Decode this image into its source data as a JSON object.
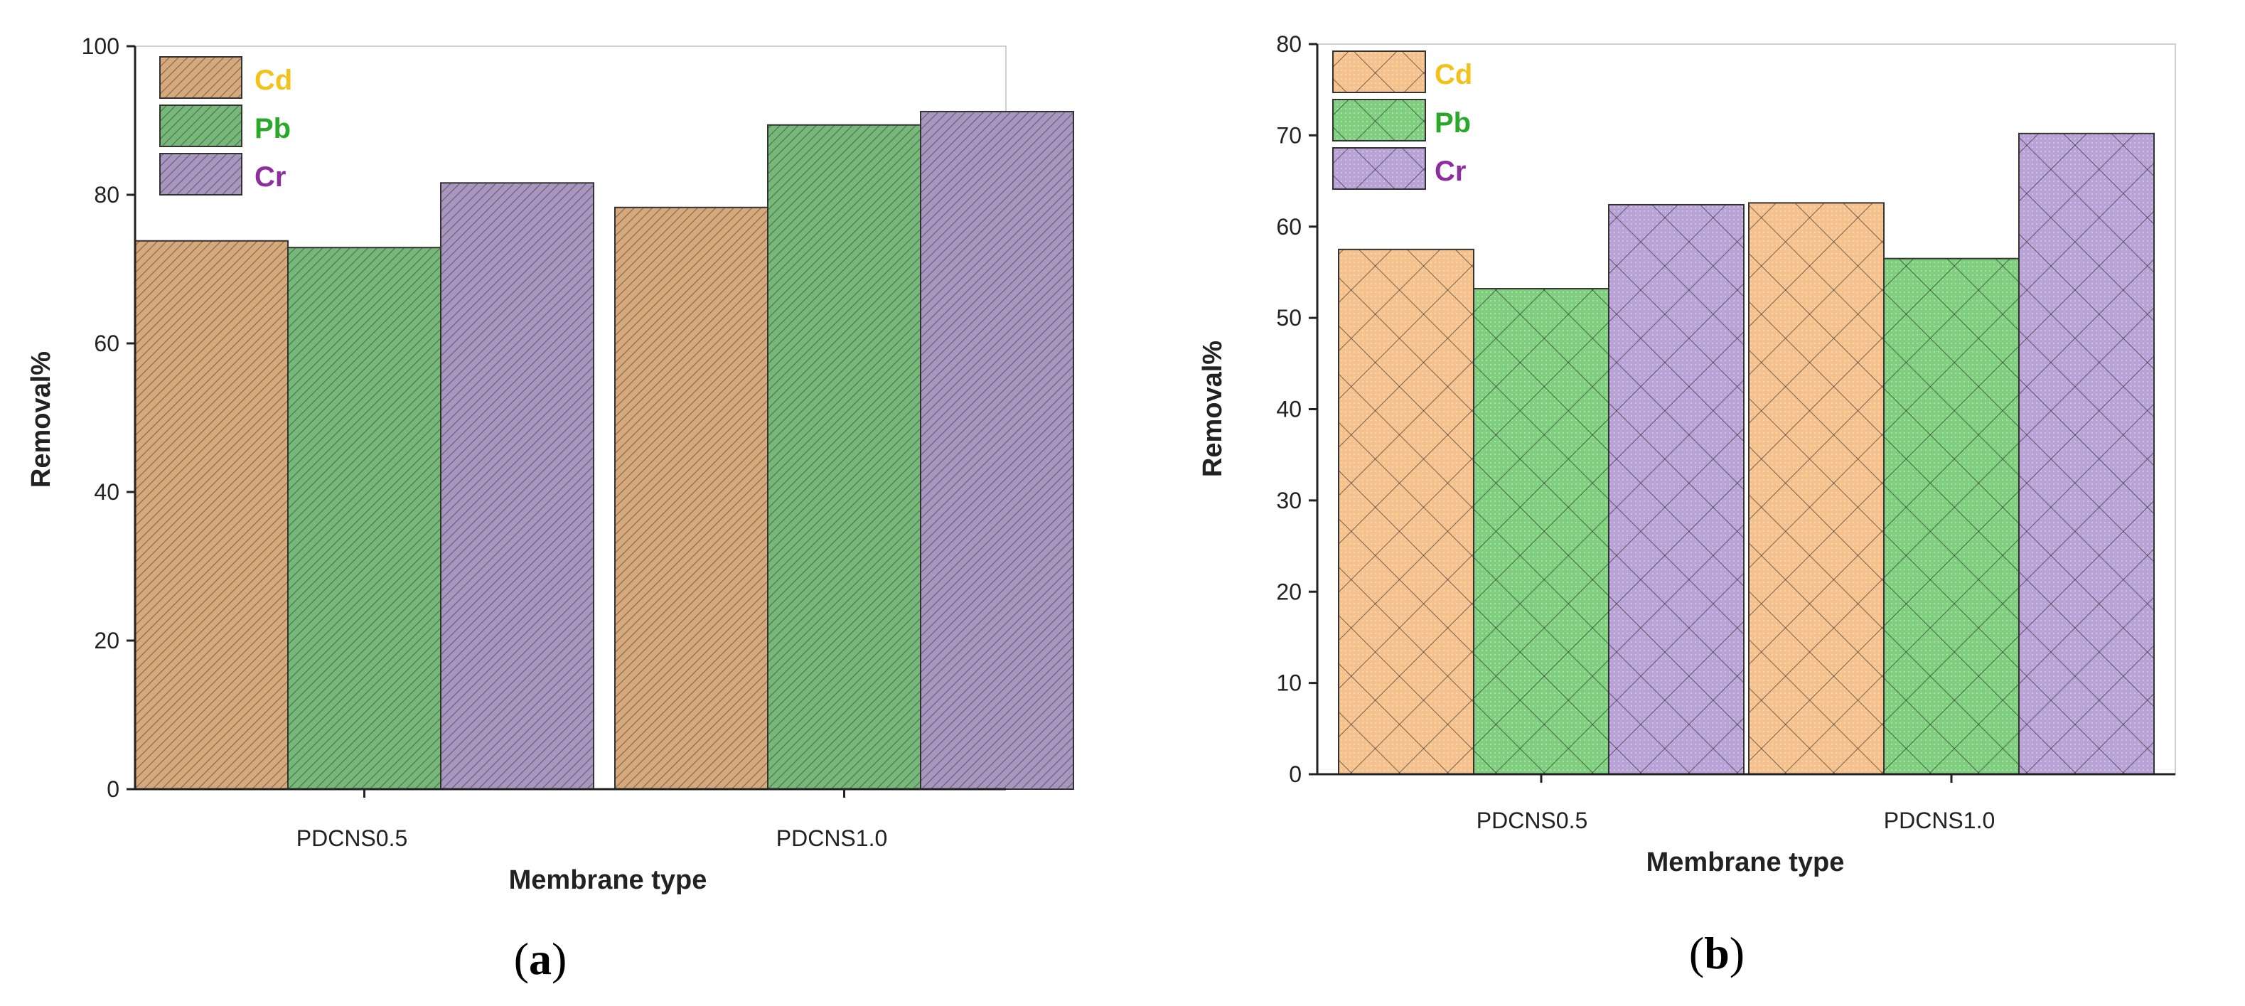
{
  "colors": {
    "Cd": "#f5c28d",
    "Pb": "#7fcf7f",
    "Cr": "#b9a3d6",
    "Cd_a": "#d6a97c",
    "Pb_a": "#75b87a",
    "Cr_a": "#a895c0",
    "Cd_text": "#f2c21b",
    "Pb_text": "#2aa82a",
    "Cr_text": "#8e2d9e"
  },
  "chart_data": [
    {
      "id": "a",
      "type": "bar",
      "panel_label": {
        "open": "(",
        "letter": "a",
        "close": ")"
      },
      "categories": [
        "PDCNS0.5",
        "PDCNS1.0"
      ],
      "series": [
        {
          "name": "Cd",
          "values": [
            73.8,
            78.3
          ]
        },
        {
          "name": "Pb",
          "values": [
            72.9,
            89.4
          ]
        },
        {
          "name": "Cr",
          "values": [
            81.6,
            91.2
          ]
        }
      ],
      "xlabel": "Membrane type",
      "ylabel": "Removal%",
      "ylim": [
        0,
        100
      ],
      "yticks": [
        0,
        20,
        40,
        60,
        80,
        100
      ],
      "pattern": "diagonal hatch",
      "legend": "top-left"
    },
    {
      "id": "b",
      "type": "bar",
      "panel_label": {
        "open": "(",
        "letter": "b",
        "close": ")"
      },
      "categories": [
        "PDCNS0.5",
        "PDCNS1.0"
      ],
      "series": [
        {
          "name": "Cd",
          "values": [
            57.5,
            62.6
          ]
        },
        {
          "name": "Pb",
          "values": [
            53.2,
            56.5
          ]
        },
        {
          "name": "Cr",
          "values": [
            62.4,
            70.2
          ]
        }
      ],
      "xlabel": "Membrane type",
      "ylabel": "Removal%",
      "ylim": [
        0,
        80
      ],
      "yticks": [
        0,
        10,
        20,
        30,
        40,
        50,
        60,
        70,
        80
      ],
      "pattern": "crosshatch",
      "legend": "top-left"
    }
  ]
}
